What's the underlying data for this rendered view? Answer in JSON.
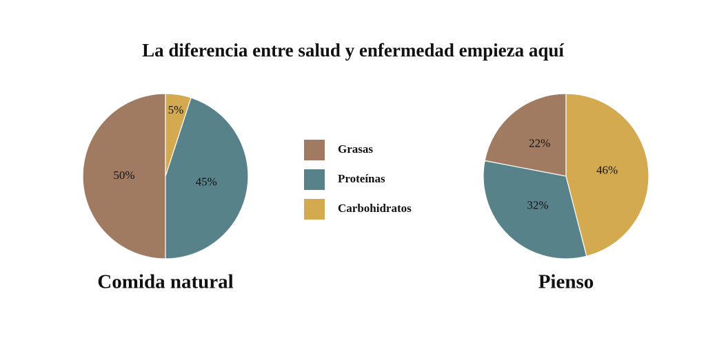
{
  "title": "La diferencia entre salud y enfermedad empieza aquí",
  "chart_data": [
    {
      "type": "pie",
      "title": "Comida natural",
      "categories": [
        "Grasas",
        "Proteínas",
        "Carbohidratos"
      ],
      "values": [
        50,
        45,
        5
      ],
      "value_labels": [
        "50%",
        "45%",
        "5%"
      ],
      "colors": [
        "#a07b61",
        "#58828a",
        "#d3aa50"
      ],
      "legend": "center"
    },
    {
      "type": "pie",
      "title": "Pienso",
      "categories": [
        "Grasas",
        "Proteínas",
        "Carbohidratos"
      ],
      "values": [
        22,
        32,
        46
      ],
      "value_labels": [
        "22%",
        "32%",
        "46%"
      ],
      "colors": [
        "#a07b61",
        "#58828a",
        "#d3aa50"
      ]
    }
  ]
}
